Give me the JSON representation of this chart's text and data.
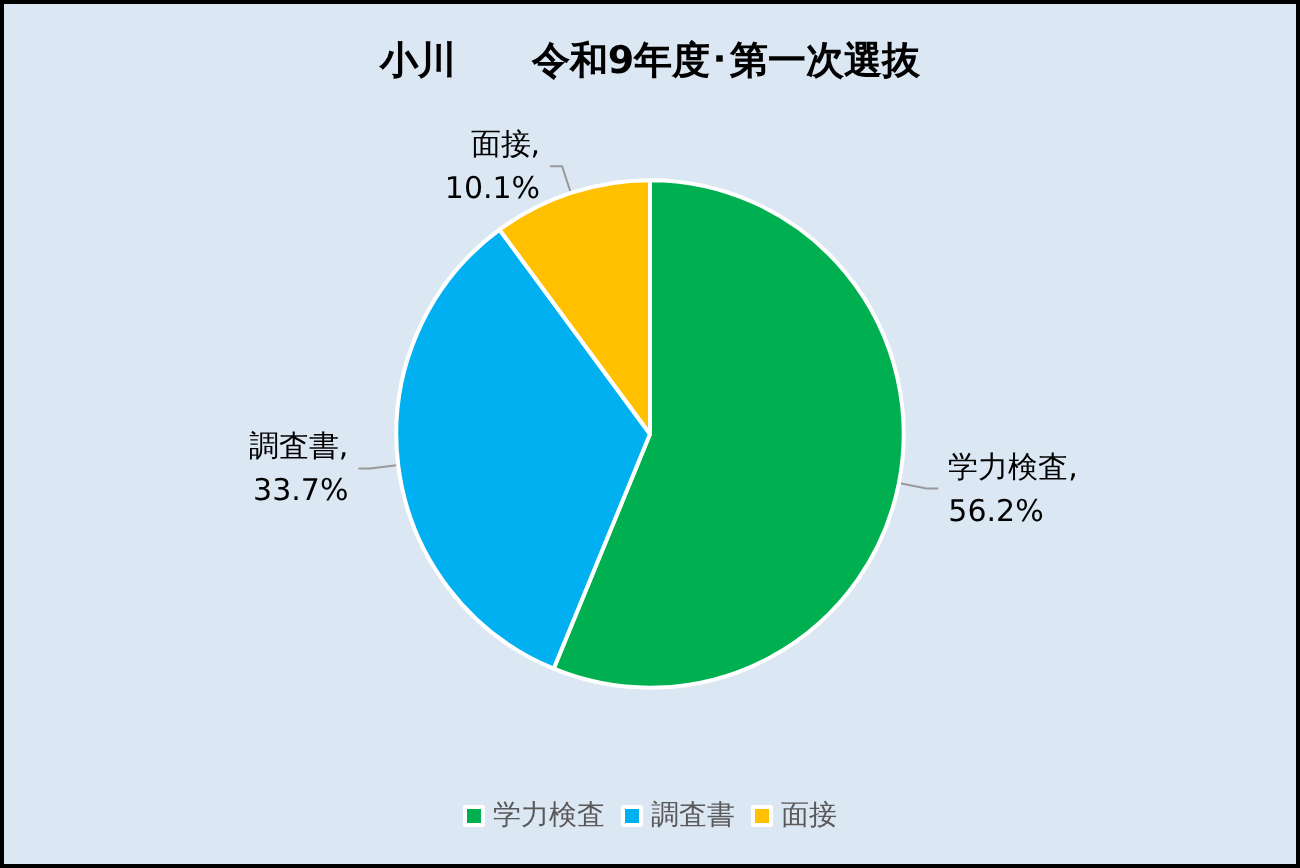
{
  "chart_data": {
    "type": "pie",
    "title": "小川　　令和9年度･第一次選抜",
    "categories": [
      "学力検査",
      "調査書",
      "面接"
    ],
    "values": [
      56.2,
      33.7,
      10.1
    ],
    "colors": [
      "#00b050",
      "#00b0f0",
      "#ffc000"
    ],
    "value_labels": [
      "学力検査,\n56.2%",
      "調査書,\n33.7%",
      "面接,\n10.1%"
    ],
    "legend": "bottom"
  }
}
